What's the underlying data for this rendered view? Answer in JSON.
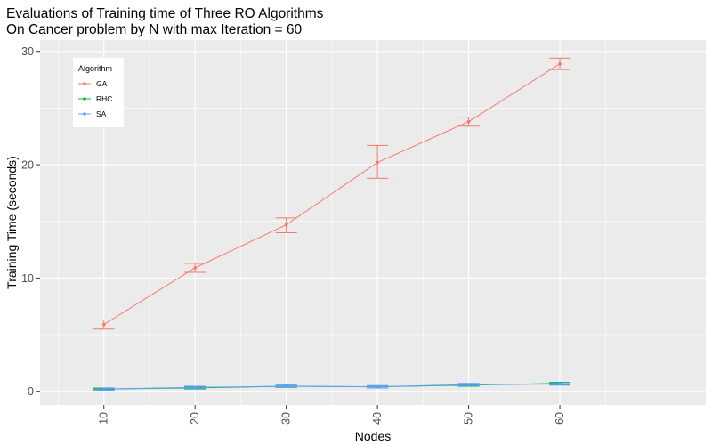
{
  "chart_data": {
    "type": "line",
    "title": "Evaluations of Training time of Three RO Algorithms",
    "subtitle": "On Cancer problem by N with max Iteration = 60",
    "xlabel": "Nodes",
    "ylabel": "Training Time (seconds)",
    "x": [
      10,
      20,
      30,
      40,
      50,
      60
    ],
    "x_ticks": [
      "10",
      "20",
      "30",
      "40",
      "50",
      "60"
    ],
    "xlim": [
      3,
      76
    ],
    "ylim": [
      -1.2,
      31
    ],
    "y_ticks": [
      0,
      10,
      20,
      30
    ],
    "y_tick_labels": [
      "0",
      "10",
      "20",
      "30"
    ],
    "grid": true,
    "legend": {
      "title": "Algorithm",
      "position": "top-left"
    },
    "series": [
      {
        "name": "GA",
        "color": "#F8766D",
        "values": [
          5.9,
          10.9,
          14.7,
          20.2,
          23.8,
          28.9
        ],
        "err_low": [
          5.5,
          10.5,
          14.0,
          18.8,
          23.4,
          28.4
        ],
        "err_high": [
          6.3,
          11.3,
          15.3,
          21.7,
          24.2,
          29.4
        ]
      },
      {
        "name": "RHC",
        "color": "#00BA38",
        "values": [
          0.2,
          0.3,
          0.45,
          0.4,
          0.55,
          0.7
        ],
        "err_low": [
          0.15,
          0.2,
          0.35,
          0.3,
          0.45,
          0.6
        ],
        "err_high": [
          0.25,
          0.4,
          0.55,
          0.5,
          0.65,
          0.8
        ]
      },
      {
        "name": "SA",
        "color": "#619CFF",
        "values": [
          0.2,
          0.35,
          0.45,
          0.4,
          0.6,
          0.65
        ],
        "err_low": [
          0.1,
          0.25,
          0.35,
          0.3,
          0.5,
          0.55
        ],
        "err_high": [
          0.3,
          0.45,
          0.55,
          0.5,
          0.7,
          0.75
        ]
      }
    ]
  }
}
